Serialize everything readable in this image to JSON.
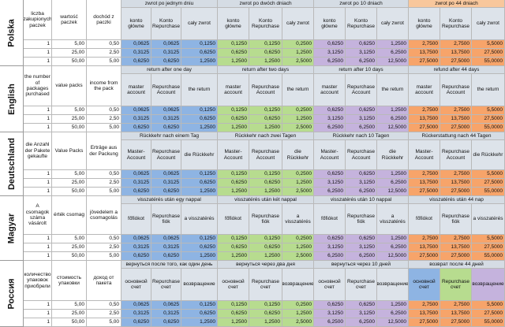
{
  "colors": {
    "group_header": "#d5dce4",
    "group_header_last": "#f8c79c",
    "sub_header": "#dde3ea",
    "blue": "#8eb4e3",
    "green": "#b7dc8f",
    "purple": "#c5b3dd",
    "orange": "#f7a46a"
  },
  "rows": [
    {
      "count": "1",
      "pack": "5,00",
      "income": "0,50",
      "v": [
        "0,0625",
        "0,0625",
        "0,1250",
        "0,1250",
        "0,1250",
        "0,2500",
        "0,6250",
        "0,6250",
        "1,2500",
        "2,7500",
        "2,7500",
        "5,5000"
      ]
    },
    {
      "count": "1",
      "pack": "25,00",
      "income": "2,50",
      "v": [
        "0,3125",
        "0,3125",
        "0,6250",
        "0,6250",
        "0,6250",
        "1,2500",
        "3,1250",
        "3,1250",
        "6,2500",
        "13,7500",
        "13,7500",
        "27,5000"
      ]
    },
    {
      "count": "1",
      "pack": "50,00",
      "income": "5,00",
      "v": [
        "0,6250",
        "0,6250",
        "1,2500",
        "1,2500",
        "1,2500",
        "2,5000",
        "6,2500",
        "6,2500",
        "12,5000",
        "27,5000",
        "27,5000",
        "55,0000"
      ]
    }
  ],
  "sections": [
    {
      "language": "Polska",
      "headers": [
        "liczba zakupionych paczek",
        "wartość paczek",
        "dochód z paczki"
      ],
      "groups": [
        "zwrot po jednym dniu",
        "zwrot po dwóch dniach",
        "zwrot po 10 dniach",
        "zwrot po 44 dniach"
      ],
      "subs": [
        "konto główne",
        "Konto Repurchase",
        "cały zwrot",
        "konto główne",
        "Konto Repurchase",
        "cały zwrot",
        "konto główne",
        "Konto Repurchase",
        "cały zwrot",
        "konto główne",
        "Konto Repurchase",
        "cały zwrot"
      ]
    },
    {
      "language": "English",
      "headers": [
        "the number of packages purchased",
        "value packs",
        "income from the pack"
      ],
      "groups": [
        "return after one day",
        "return after two days",
        "return after 10 days",
        "refund after 44 days"
      ],
      "subs": [
        "master account",
        "Repurchase Account",
        "the return",
        "master account",
        "Repurchase Account",
        "the return",
        "master account",
        "Repurchase Account",
        "the return",
        "master account",
        "Repurchase Account",
        "the return"
      ]
    },
    {
      "language": "Deutschland",
      "headers": [
        "die Anzahl der Pakete gekaufte",
        "Value Packs",
        "Erträge aus der Packung"
      ],
      "groups": [
        "Rückkehr nach einem Tag",
        "Rückkehr nach zwei Tagen",
        "Rückkehr nach 10 Tagen",
        "Rückerstattung nach 44 Tagen"
      ],
      "subs": [
        "Master-Account",
        "Repurchase Account",
        "die Rückkehr",
        "Master-Account",
        "Repurchase Account",
        "die Rückkehr",
        "Master-Account",
        "Repurchase Account",
        "die Rückkehr",
        "Master-Account",
        "Repurchase Account",
        "die Rückkehr"
      ]
    },
    {
      "language": "Magyar",
      "headers": [
        "A csomagok száma vásárolt",
        "érték csomag",
        "jövedelem a csomagolás"
      ],
      "groups": [
        "visszatérés után egy nappal",
        "visszatérés után két nappal",
        "visszatérés után 10 nappal",
        "visszatérés után 44 nap"
      ],
      "subs": [
        "főfiókot",
        "Repurchase fiók",
        "a visszatérés",
        "főfiókot",
        "Repurchase fiók",
        "a visszatérés",
        "főfiókot",
        "Repurchase fiók",
        "a visszatérés",
        "főfiókot",
        "Repurchase fiók",
        "a visszatérés"
      ]
    },
    {
      "language": "Россия",
      "headers": [
        "количество упаковок приобрели",
        "стоимость упаковки",
        "доход от пакета"
      ],
      "groups": [
        "вернуться после того, как один день",
        "вернуться через два дня",
        "вернуться через 10 дней",
        "возврат после 44 дней"
      ],
      "subs": [
        "основной счет",
        "Repurchase счет",
        "возвращение",
        "основной счет",
        "Repurchase счет",
        "возвращение",
        "основной счет",
        "Repurchase счет",
        "возвращение",
        "основной счет",
        "Repurchase счет",
        "возвращение"
      ]
    }
  ]
}
